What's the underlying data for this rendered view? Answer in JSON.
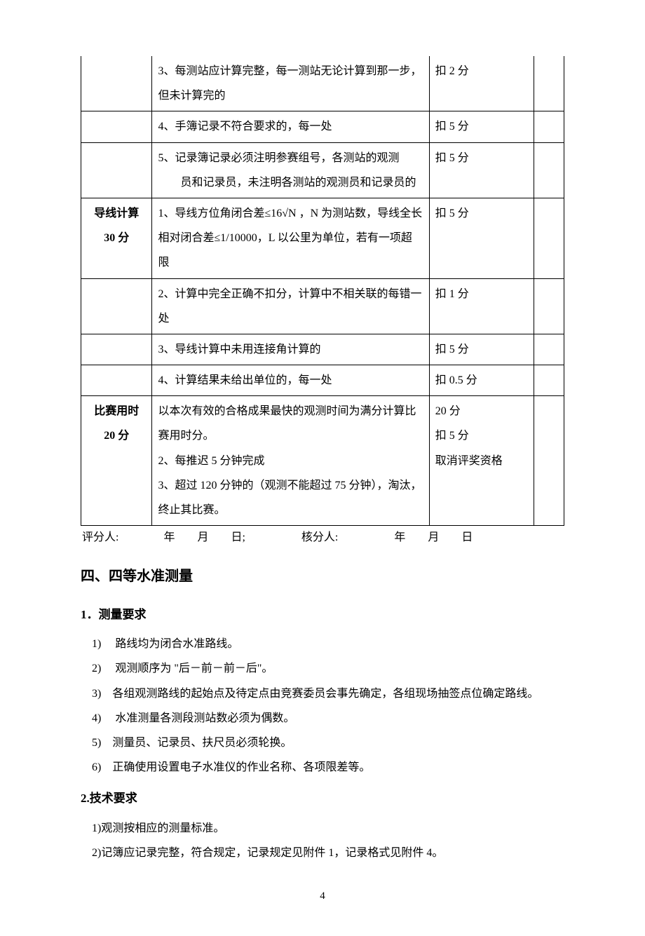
{
  "table": {
    "rows": [
      {
        "c1": "",
        "c2": "3、每测站应计算完整，每一测站无论计算到那一步，但未计算完的",
        "c3": "扣 2 分",
        "no_top": true
      },
      {
        "c1": "",
        "c2": "4、手簿记录不符合要求的，每一处",
        "c3": "扣 5 分"
      },
      {
        "c1": "",
        "c2": "5、记录簿记录必须注明参赛组号，各测站的观测\n　　员和记录员，未注明各测站的观测员和记录员的",
        "c3": "扣 5 分"
      },
      {
        "c1": "导线计算\n30 分",
        "c2": "1、导线方位角闭合差≤16√N ，N 为测站数，导线全长相对闭合差≤1/10000，L 以公里为单位，若有一项超限",
        "c3": "扣 5 分",
        "c1_bold": true
      },
      {
        "c1": "",
        "c2": "2、计算中完全正确不扣分，计算中不相关联的每错一处",
        "c3": "扣 1 分"
      },
      {
        "c1": "",
        "c2": "3、导线计算中未用连接角计算的",
        "c3": "扣 5 分"
      },
      {
        "c1": "",
        "c2": "4、计算结果未给出单位的，每一处",
        "c3": "扣 0.5 分"
      },
      {
        "c1": "比赛用时\n20 分",
        "c2": "以本次有效的合格成果最快的观测时间为满分计算比赛用时分。\n2、每推迟 5 分钟完成\n3、超过 120 分钟的（观测不能超过 75 分钟），淘汰，终止其比赛。",
        "c3": "20 分\n扣 5 分\n取消评奖资格",
        "c1_bold": true
      }
    ]
  },
  "sign_line": "评分人:　　　　年　　月　　日;　　　　　核分人:　　　　　年　　月　　日",
  "section_heading": "四、四等水准测量",
  "sub1": {
    "title": "1．测量要求",
    "items": [
      "1)　 路线均为闭合水准路线。",
      "2)　 观测顺序为 \"后－前－前－后\"。",
      "3)　各组观测路线的起始点及待定点由竞赛委员会事先确定，各组现场抽签点位确定路线。",
      "4)　 水准测量各测段测站数必须为偶数。",
      "5)　测量员、记录员、扶尺员必须轮换。",
      "6)　正确使用设置电子水准仪的作业名称、各项限差等。"
    ]
  },
  "sub2": {
    "title": "2.技术要求",
    "items": [
      "1)观测按相应的测量标准。",
      "2)记簿应记录完整，符合规定，记录规定见附件 1，记录格式见附件 4。"
    ]
  },
  "page_number": "4"
}
